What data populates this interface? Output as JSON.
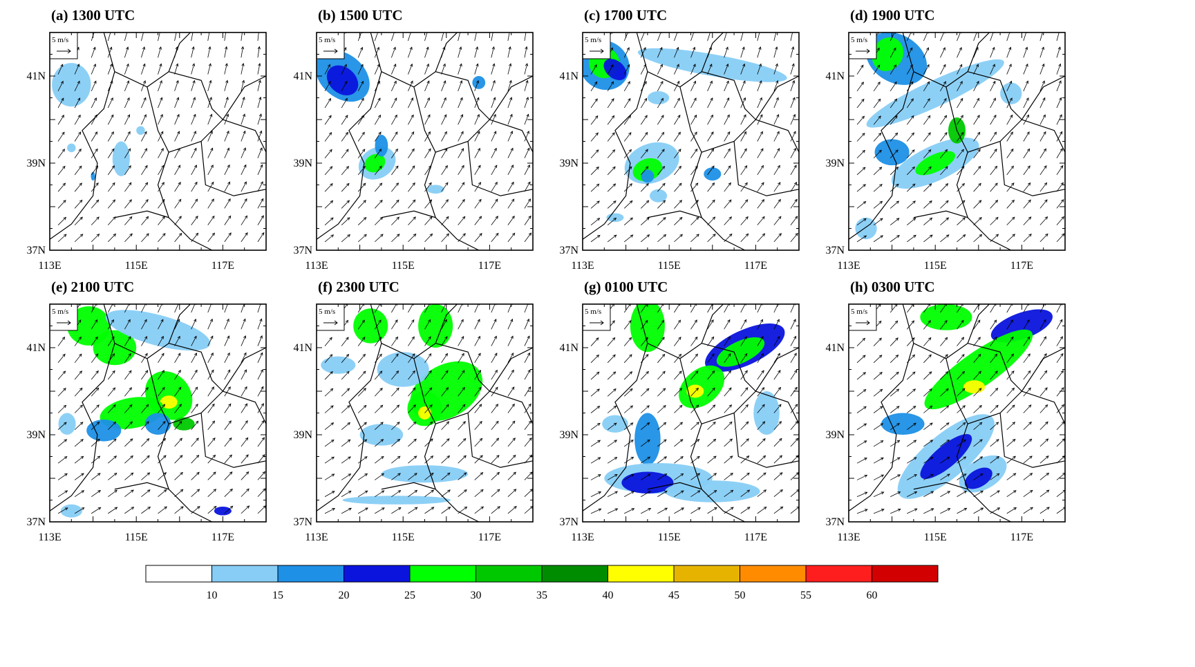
{
  "panels": [
    {
      "id": "a",
      "title": "(a) 1300 UTC"
    },
    {
      "id": "b",
      "title": "(b) 1500 UTC"
    },
    {
      "id": "c",
      "title": "(c) 1700 UTC"
    },
    {
      "id": "d",
      "title": "(d) 1900 UTC"
    },
    {
      "id": "e",
      "title": "(e) 2100 UTC"
    },
    {
      "id": "f",
      "title": "(f) 2300 UTC"
    },
    {
      "id": "g",
      "title": "(g) 0100 UTC"
    },
    {
      "id": "h",
      "title": "(h) 0300 UTC"
    }
  ],
  "axes": {
    "lon_ticks": [
      "113E",
      "115E",
      "117E"
    ],
    "lat_ticks": [
      "41N",
      "39N",
      "37N"
    ],
    "lon_range": [
      113,
      118
    ],
    "lat_range": [
      37,
      42
    ]
  },
  "reference_vector": {
    "label": "5 m/s"
  },
  "colorbar": {
    "colors": [
      "#ffffff",
      "#87cdf5",
      "#1e90e6",
      "#0a14dc",
      "#00ff00",
      "#00c800",
      "#008c00",
      "#ffff00",
      "#e6b400",
      "#ff8c00",
      "#ff1e1e",
      "#d20000"
    ],
    "labels": [
      "10",
      "15",
      "20",
      "25",
      "30",
      "35",
      "40",
      "45",
      "50",
      "55",
      "60"
    ]
  },
  "colors": {
    "border": "#000000",
    "boundary_lines": "#000000"
  }
}
